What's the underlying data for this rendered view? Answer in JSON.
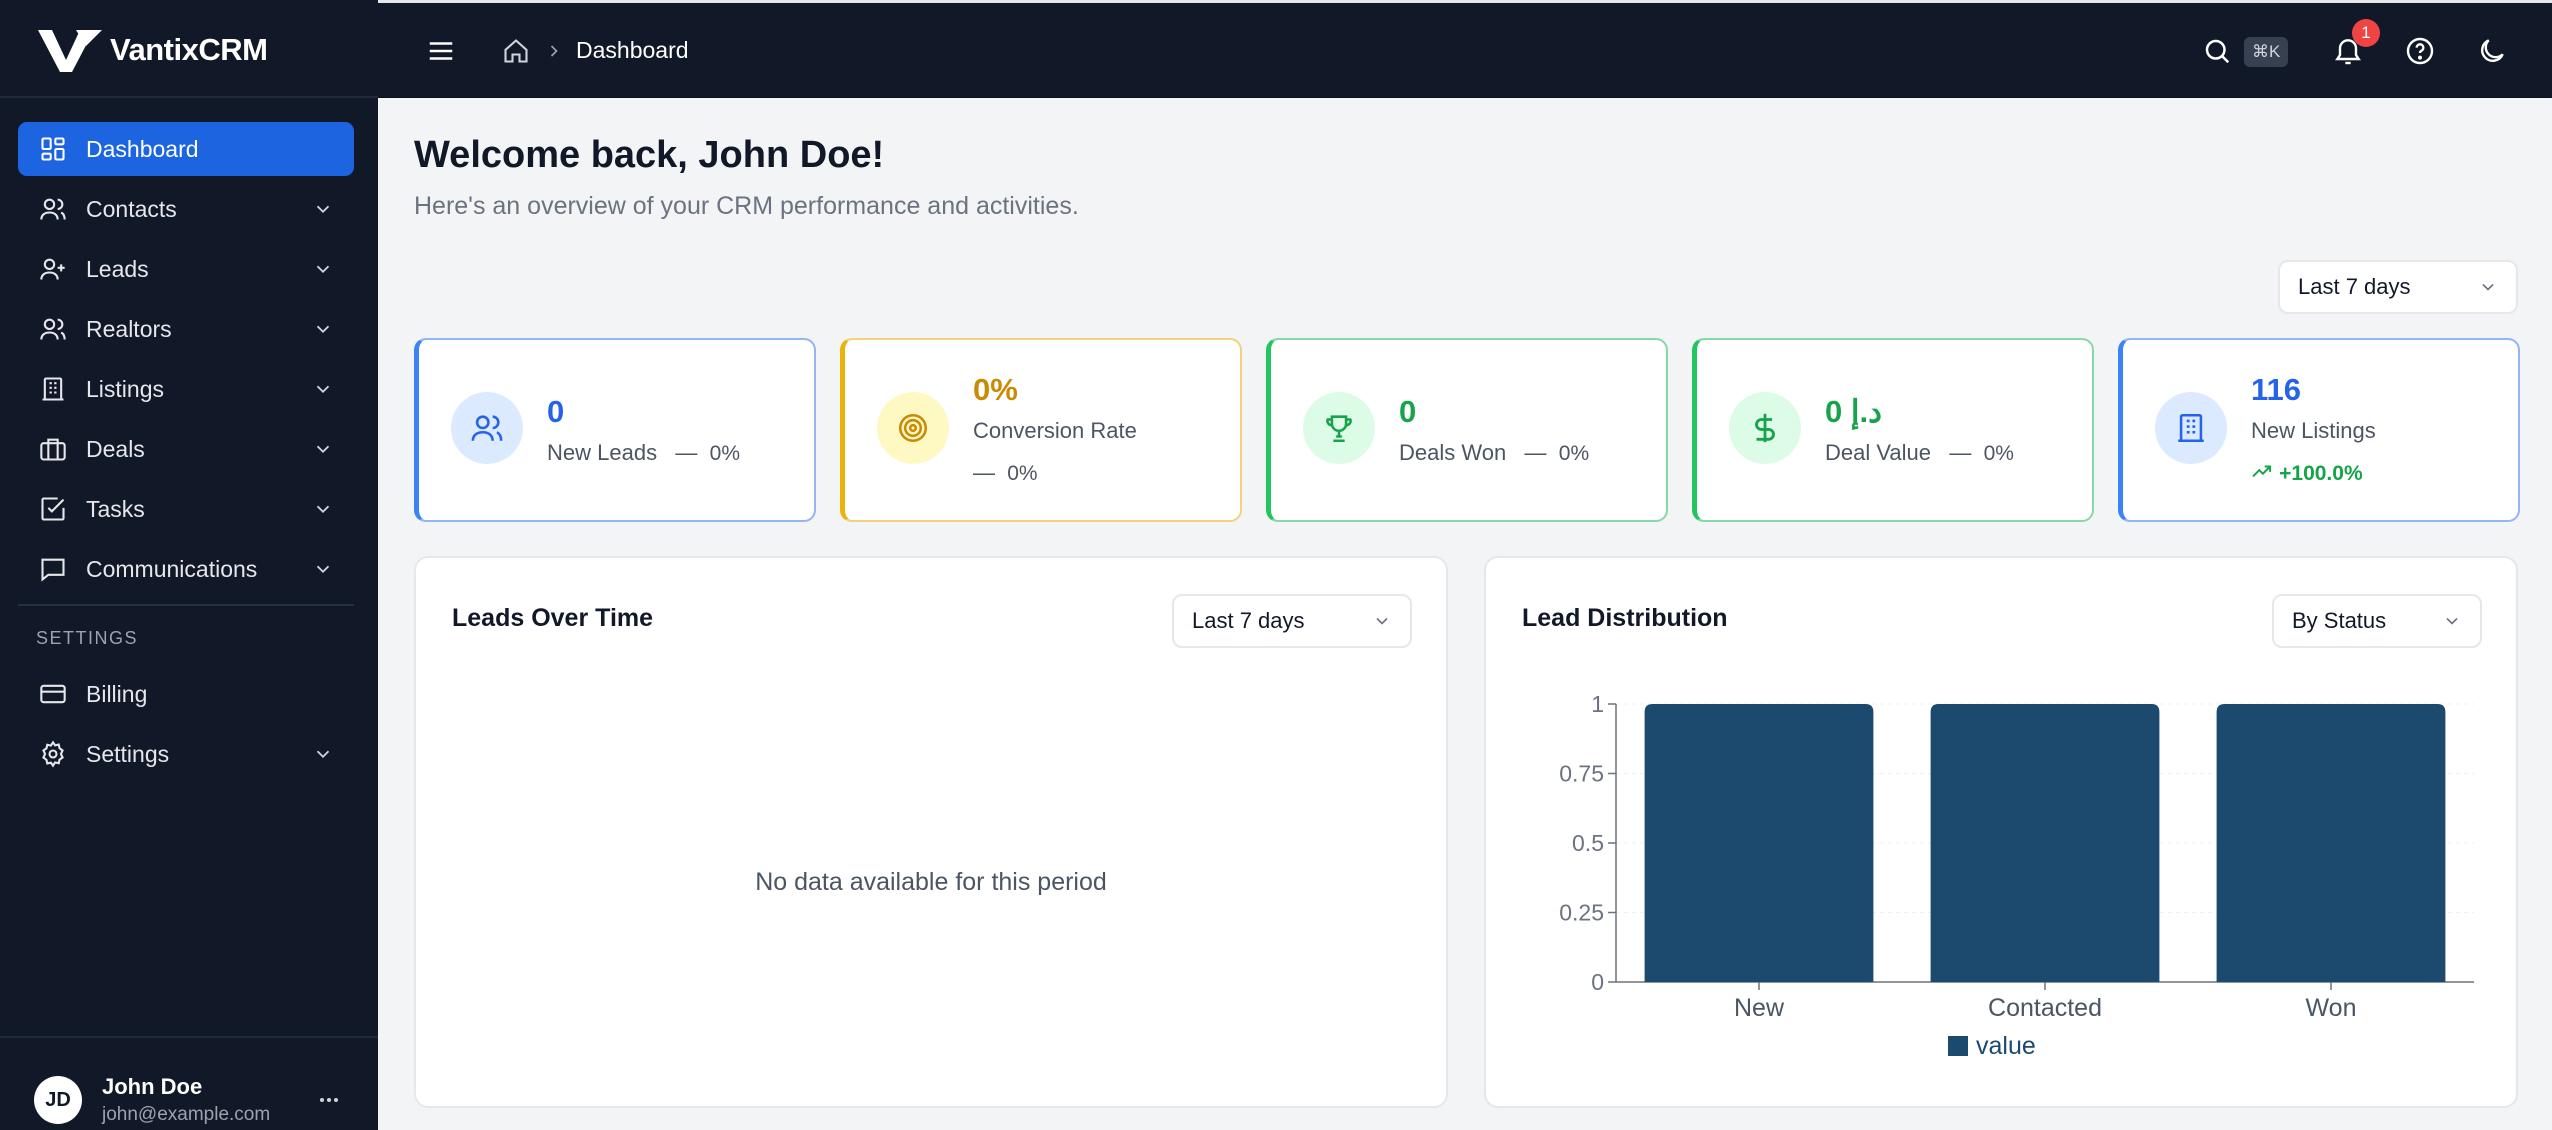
{
  "app": {
    "name": "VantixCRM"
  },
  "sidebar": {
    "items": [
      {
        "label": "Dashboard",
        "icon": "dashboard-icon",
        "active": true,
        "chevron": false
      },
      {
        "label": "Contacts",
        "icon": "users-icon",
        "active": false,
        "chevron": true
      },
      {
        "label": "Leads",
        "icon": "user-plus-icon",
        "active": false,
        "chevron": true
      },
      {
        "label": "Realtors",
        "icon": "users-icon",
        "active": false,
        "chevron": true
      },
      {
        "label": "Listings",
        "icon": "building-icon",
        "active": false,
        "chevron": true
      },
      {
        "label": "Deals",
        "icon": "briefcase-icon",
        "active": false,
        "chevron": true
      },
      {
        "label": "Tasks",
        "icon": "check-square-icon",
        "active": false,
        "chevron": true
      },
      {
        "label": "Communications",
        "icon": "message-icon",
        "active": false,
        "chevron": true
      }
    ],
    "section_label": "SETTINGS",
    "settings_items": [
      {
        "label": "Billing",
        "icon": "credit-card-icon",
        "chevron": false
      },
      {
        "label": "Settings",
        "icon": "gear-icon",
        "chevron": true
      }
    ],
    "user": {
      "initials": "JD",
      "name": "John Doe",
      "email": "john@example.com"
    }
  },
  "topbar": {
    "breadcrumb": "Dashboard",
    "search_shortcut": "⌘K",
    "notification_count": "1"
  },
  "main": {
    "welcome": "Welcome back, John Doe!",
    "subtitle": "Here's an overview of your CRM performance and activities.",
    "period_select": "Last 7 days",
    "stats": [
      {
        "value": "0",
        "label": "New Leads",
        "change": "0%",
        "accent": "#3b82f6",
        "icon": "users-icon",
        "trend": "neutral"
      },
      {
        "value": "0%",
        "label": "Conversion Rate",
        "change": "0%",
        "accent": "#eab308",
        "icon": "target-icon",
        "trend": "neutral"
      },
      {
        "value": "0",
        "label": "Deals Won",
        "change": "0%",
        "accent": "#22c55e",
        "icon": "trophy-icon",
        "trend": "neutral"
      },
      {
        "value": "0 د.إ",
        "label": "Deal Value",
        "change": "0%",
        "accent": "#22c55e",
        "icon": "dollar-icon",
        "trend": "neutral"
      },
      {
        "value": "116",
        "label": "New Listings",
        "change": "+100.0%",
        "accent": "#3b82f6",
        "icon": "building-icon",
        "trend": "up"
      }
    ],
    "leads_panel": {
      "title": "Leads Over Time",
      "select": "Last 7 days",
      "empty_message": "No data available for this period"
    },
    "distribution_panel": {
      "title": "Lead Distribution",
      "select": "By Status"
    }
  },
  "chart_data": {
    "type": "bar",
    "categories": [
      "New",
      "Contacted",
      "Won"
    ],
    "series": [
      {
        "name": "value",
        "values": [
          1,
          1,
          1
        ],
        "color": "#1c4a6e"
      }
    ],
    "yticks": [
      "0",
      "0.25",
      "0.5",
      "0.75",
      "1"
    ],
    "ylim": [
      0,
      1
    ],
    "legend": "bottom"
  }
}
